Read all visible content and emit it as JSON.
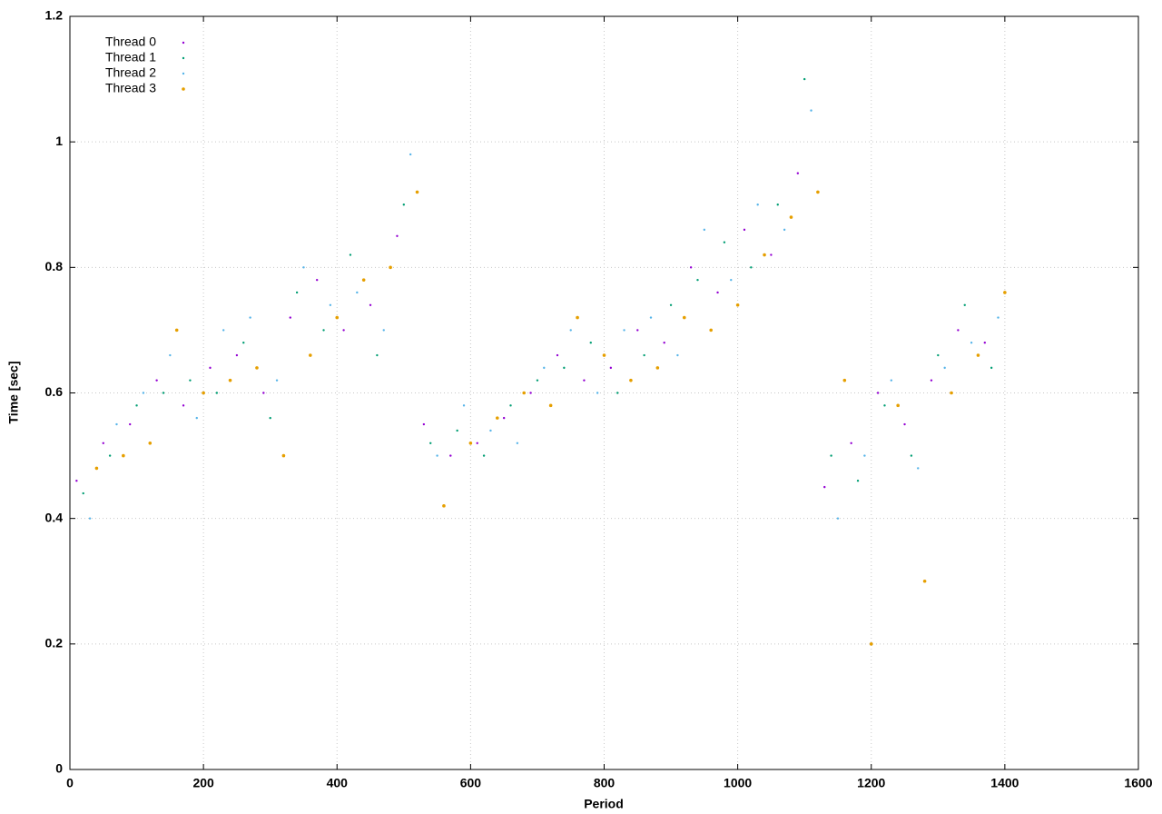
{
  "chart_data": {
    "type": "scatter",
    "xlabel": "Period",
    "ylabel": "Time [sec]",
    "xlim": [
      0,
      1600
    ],
    "xticks": [
      0,
      200,
      400,
      600,
      800,
      1000,
      1200,
      1400,
      1600
    ],
    "ylim": [
      0,
      1.2
    ],
    "yticks": [
      0,
      0.2,
      0.4,
      0.6,
      0.8,
      1,
      1.2
    ],
    "grid": true,
    "legend": "top-left",
    "series": [
      {
        "name": "Thread 0",
        "color": "#9400d3",
        "x": [
          10,
          50,
          90,
          130,
          170,
          210,
          250,
          290,
          330,
          370,
          410,
          450,
          490,
          530,
          570,
          610,
          650,
          690,
          730,
          770,
          810,
          850,
          890,
          930,
          970,
          1010,
          1050,
          1090,
          1130,
          1170,
          1210,
          1250,
          1290,
          1330,
          1370
        ],
        "values": [
          0.46,
          0.52,
          0.55,
          0.62,
          0.58,
          0.64,
          0.66,
          0.6,
          0.72,
          0.78,
          0.7,
          0.74,
          0.85,
          0.55,
          0.5,
          0.52,
          0.56,
          0.6,
          0.66,
          0.62,
          0.64,
          0.7,
          0.68,
          0.8,
          0.76,
          0.86,
          0.82,
          0.95,
          0.45,
          0.52,
          0.6,
          0.55,
          0.62,
          0.7,
          0.68
        ]
      },
      {
        "name": "Thread 1",
        "color": "#009e73",
        "x": [
          20,
          60,
          100,
          140,
          180,
          220,
          260,
          300,
          340,
          380,
          420,
          460,
          500,
          540,
          580,
          620,
          660,
          700,
          740,
          780,
          820,
          860,
          900,
          940,
          980,
          1020,
          1060,
          1100,
          1140,
          1180,
          1220,
          1260,
          1300,
          1340,
          1380
        ],
        "values": [
          0.44,
          0.5,
          0.58,
          0.6,
          0.62,
          0.6,
          0.68,
          0.56,
          0.76,
          0.7,
          0.82,
          0.66,
          0.9,
          0.52,
          0.54,
          0.5,
          0.58,
          0.62,
          0.64,
          0.68,
          0.6,
          0.66,
          0.74,
          0.78,
          0.84,
          0.8,
          0.9,
          1.1,
          0.5,
          0.46,
          0.58,
          0.5,
          0.66,
          0.74,
          0.64
        ]
      },
      {
        "name": "Thread 2",
        "color": "#56b4e9",
        "x": [
          30,
          70,
          110,
          150,
          190,
          230,
          270,
          310,
          350,
          390,
          430,
          470,
          510,
          550,
          590,
          630,
          670,
          710,
          750,
          790,
          830,
          870,
          910,
          950,
          990,
          1030,
          1070,
          1110,
          1150,
          1190,
          1230,
          1270,
          1310,
          1350,
          1390
        ],
        "values": [
          0.4,
          0.55,
          0.6,
          0.66,
          0.56,
          0.7,
          0.72,
          0.62,
          0.8,
          0.74,
          0.76,
          0.7,
          0.98,
          0.5,
          0.58,
          0.54,
          0.52,
          0.64,
          0.7,
          0.6,
          0.7,
          0.72,
          0.66,
          0.86,
          0.78,
          0.9,
          0.86,
          1.05,
          0.4,
          0.5,
          0.62,
          0.48,
          0.64,
          0.68,
          0.72
        ]
      },
      {
        "name": "Thread 3",
        "color": "#e69f00",
        "x": [
          40,
          80,
          120,
          160,
          200,
          240,
          280,
          320,
          360,
          400,
          440,
          480,
          520,
          560,
          600,
          640,
          680,
          720,
          760,
          800,
          840,
          880,
          920,
          960,
          1000,
          1040,
          1080,
          1120,
          1160,
          1200,
          1240,
          1280,
          1320,
          1360,
          1400
        ],
        "values": [
          0.48,
          0.5,
          0.52,
          0.7,
          0.6,
          0.62,
          0.64,
          0.5,
          0.66,
          0.72,
          0.78,
          0.8,
          0.92,
          0.42,
          0.52,
          0.56,
          0.6,
          0.58,
          0.72,
          0.66,
          0.62,
          0.64,
          0.72,
          0.7,
          0.74,
          0.82,
          0.88,
          0.92,
          0.62,
          0.2,
          0.58,
          0.3,
          0.6,
          0.66,
          0.76
        ]
      }
    ]
  }
}
